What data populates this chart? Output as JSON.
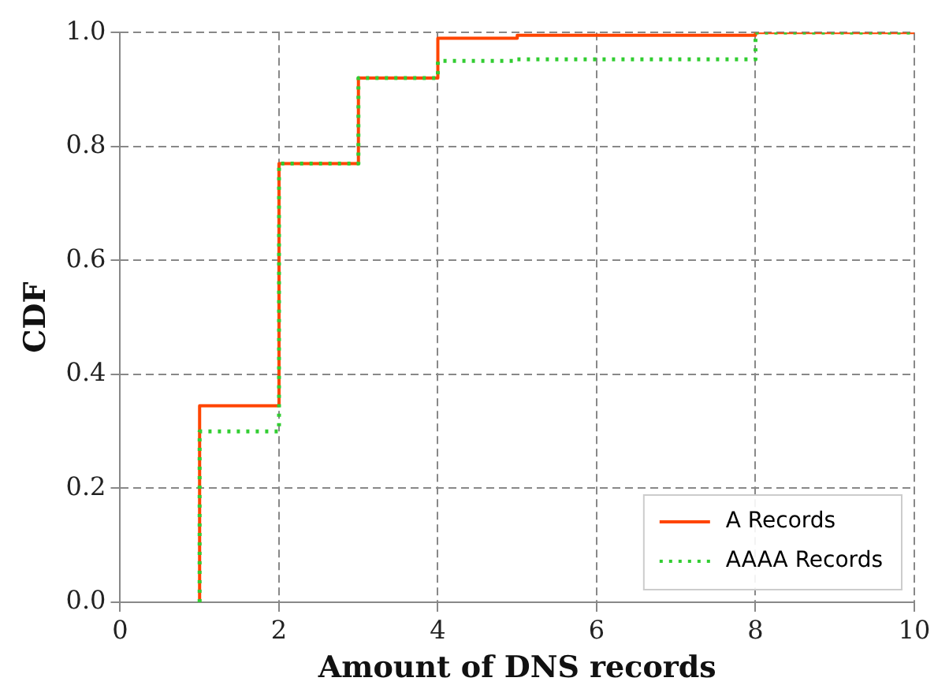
{
  "chart_data": {
    "type": "step",
    "xlabel": "Amount of DNS records",
    "ylabel": "CDF",
    "xlim": [
      0,
      10
    ],
    "xticks": [
      0,
      2,
      4,
      6,
      8,
      10
    ],
    "ylim": [
      0,
      1
    ],
    "yticks": [
      {
        "value": 0,
        "label": "0.0"
      },
      {
        "value": 0.2,
        "label": "0.2"
      },
      {
        "value": 0.4,
        "label": "0.4"
      },
      {
        "value": 0.6,
        "label": "0.6"
      },
      {
        "value": 0.8,
        "label": "0.8"
      },
      {
        "value": 1,
        "label": "1.0"
      }
    ],
    "grid": true,
    "legend": "bottom right",
    "series": [
      {
        "name": "A Records",
        "color": "#ff4500",
        "line_style": "solid",
        "x": [
          1,
          1,
          2,
          3,
          4,
          5,
          8,
          10
        ],
        "values": [
          0,
          0.345,
          0.77,
          0.92,
          0.99,
          0.995,
          1.0,
          1.0
        ]
      },
      {
        "name": "AAAA Records",
        "color": "#32cd32",
        "line_style": "dotted",
        "x": [
          1,
          1,
          2,
          3,
          4,
          5,
          8,
          10
        ],
        "values": [
          0,
          0.3,
          0.77,
          0.92,
          0.95,
          0.953,
          1.0,
          1.0
        ]
      }
    ]
  }
}
